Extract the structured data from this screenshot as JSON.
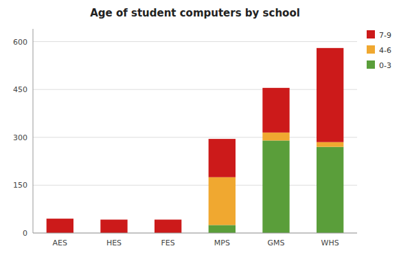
{
  "chart_data": {
    "type": "bar",
    "stacked": true,
    "title": "Age of student computers by school",
    "categories": [
      "AES",
      "HES",
      "FES",
      "MPS",
      "GMS",
      "WHS"
    ],
    "series": [
      {
        "name": "0-3",
        "color": "#5a9e3a",
        "values": [
          0,
          0,
          0,
          25,
          290,
          270
        ]
      },
      {
        "name": "4-6",
        "color": "#f0a830",
        "values": [
          0,
          0,
          0,
          150,
          25,
          15
        ]
      },
      {
        "name": "7-9",
        "color": "#cc1a1a",
        "values": [
          45,
          42,
          42,
          120,
          140,
          295
        ]
      }
    ],
    "ylim": [
      0,
      640
    ],
    "yticks": [
      0,
      150,
      300,
      450,
      600
    ],
    "grid": true,
    "legend": "upper right"
  }
}
